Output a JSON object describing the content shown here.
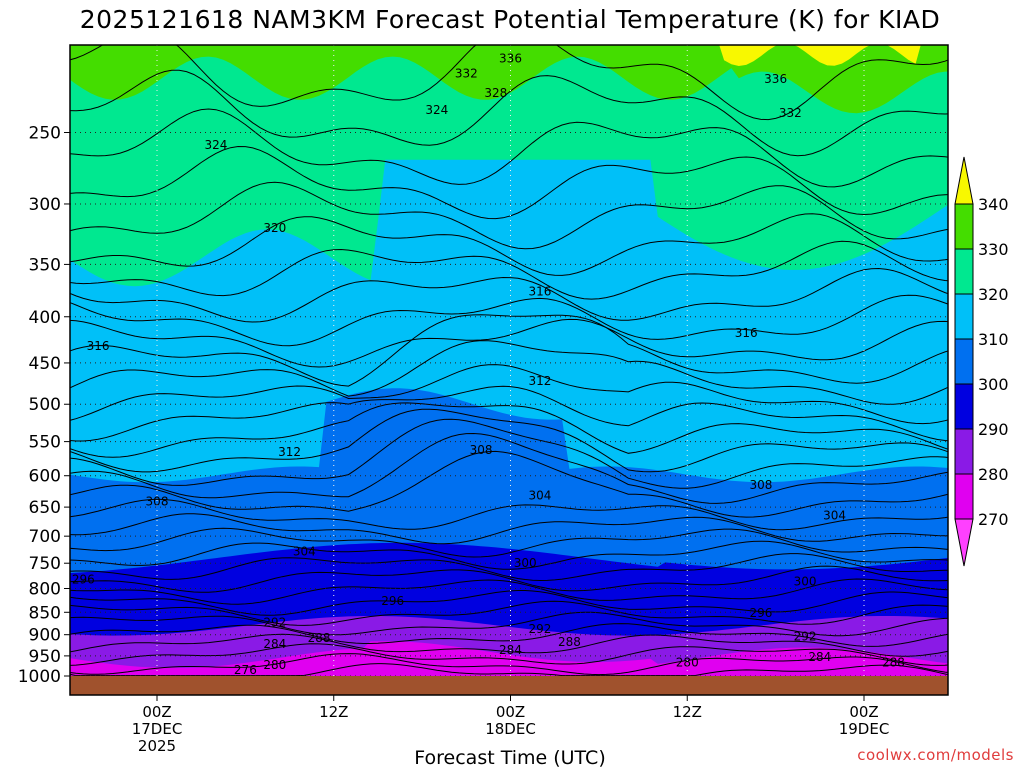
{
  "chart_data": {
    "type": "contour",
    "title": "2025121618 NAM3KM Forecast Potential Temperature (K) for KIAD",
    "xlabel": "Forecast Time (UTC)",
    "ylabel": "",
    "credit": "coolwx.com/models",
    "y_scale": "log-pressure",
    "ylim": [
      200,
      1000
    ],
    "pressure_ticks": [
      250,
      300,
      350,
      400,
      450,
      500,
      550,
      600,
      650,
      700,
      750,
      800,
      850,
      900,
      950,
      1000
    ],
    "x_ticks": [
      {
        "hours": 6,
        "lines": [
          "00Z",
          "17DEC",
          "2025"
        ]
      },
      {
        "hours": 18,
        "lines": [
          "12Z"
        ]
      },
      {
        "hours": 30,
        "lines": [
          "00Z",
          "18DEC"
        ]
      },
      {
        "hours": 42,
        "lines": [
          "12Z"
        ]
      },
      {
        "hours": 54,
        "lines": [
          "00Z",
          "19DEC"
        ]
      }
    ],
    "xlim_hours": [
      0,
      60
    ],
    "colorbar": {
      "ticks": [
        "340",
        "330",
        "320",
        "310",
        "300",
        "290",
        "280",
        "270"
      ],
      "bins": [
        {
          "range": [
            330,
            340
          ],
          "color": "#44dd00"
        },
        {
          "range": [
            320,
            330
          ],
          "color": "#00e890"
        },
        {
          "range": [
            310,
            320
          ],
          "color": "#00c0f8"
        },
        {
          "range": [
            300,
            310
          ],
          "color": "#0070f0"
        },
        {
          "range": [
            290,
            300
          ],
          "color": "#0000e0"
        },
        {
          "range": [
            280,
            290
          ],
          "color": "#8a1ae6"
        },
        {
          "range": [
            270,
            280
          ],
          "color": "#e000f0"
        }
      ],
      "over_color": "#f8f800",
      "under_color": "#ff40ff"
    },
    "ground_color": "#a0522d",
    "contour_labels": [
      {
        "text": "336",
        "hours": 30.0,
        "pressure": 207
      },
      {
        "text": "332",
        "hours": 27.0,
        "pressure": 215
      },
      {
        "text": "328",
        "hours": 29.0,
        "pressure": 226
      },
      {
        "text": "324",
        "hours": 25.0,
        "pressure": 236
      },
      {
        "text": "324",
        "hours": 10.0,
        "pressure": 258
      },
      {
        "text": "336",
        "hours": 48.0,
        "pressure": 218
      },
      {
        "text": "332",
        "hours": 49.0,
        "pressure": 238
      },
      {
        "text": "320",
        "hours": 14.0,
        "pressure": 319
      },
      {
        "text": "316",
        "hours": 32.0,
        "pressure": 375
      },
      {
        "text": "316",
        "hours": 2.0,
        "pressure": 431
      },
      {
        "text": "316",
        "hours": 46.0,
        "pressure": 417
      },
      {
        "text": "312",
        "hours": 32.0,
        "pressure": 471
      },
      {
        "text": "312",
        "hours": 15.0,
        "pressure": 565
      },
      {
        "text": "308",
        "hours": 28.0,
        "pressure": 562
      },
      {
        "text": "308",
        "hours": 6.0,
        "pressure": 641
      },
      {
        "text": "308",
        "hours": 47.0,
        "pressure": 614
      },
      {
        "text": "304",
        "hours": 32.0,
        "pressure": 631
      },
      {
        "text": "304",
        "hours": 52.0,
        "pressure": 664
      },
      {
        "text": "304",
        "hours": 16.0,
        "pressure": 728
      },
      {
        "text": "300",
        "hours": 31.0,
        "pressure": 750
      },
      {
        "text": "300",
        "hours": 50.0,
        "pressure": 786
      },
      {
        "text": "296",
        "hours": 1.0,
        "pressure": 782
      },
      {
        "text": "296",
        "hours": 22.0,
        "pressure": 826
      },
      {
        "text": "296",
        "hours": 47.0,
        "pressure": 852
      },
      {
        "text": "292",
        "hours": 14.0,
        "pressure": 872
      },
      {
        "text": "292",
        "hours": 32.0,
        "pressure": 887
      },
      {
        "text": "292",
        "hours": 50.0,
        "pressure": 904
      },
      {
        "text": "288",
        "hours": 17.0,
        "pressure": 908
      },
      {
        "text": "288",
        "hours": 34.0,
        "pressure": 917
      },
      {
        "text": "288",
        "hours": 56.0,
        "pressure": 966
      },
      {
        "text": "284",
        "hours": 14.0,
        "pressure": 922
      },
      {
        "text": "284",
        "hours": 30.0,
        "pressure": 936
      },
      {
        "text": "284",
        "hours": 51.0,
        "pressure": 953
      },
      {
        "text": "280",
        "hours": 14.0,
        "pressure": 972
      },
      {
        "text": "280",
        "hours": 42.0,
        "pressure": 966
      },
      {
        "text": "276",
        "hours": 12.0,
        "pressure": 985
      }
    ]
  }
}
